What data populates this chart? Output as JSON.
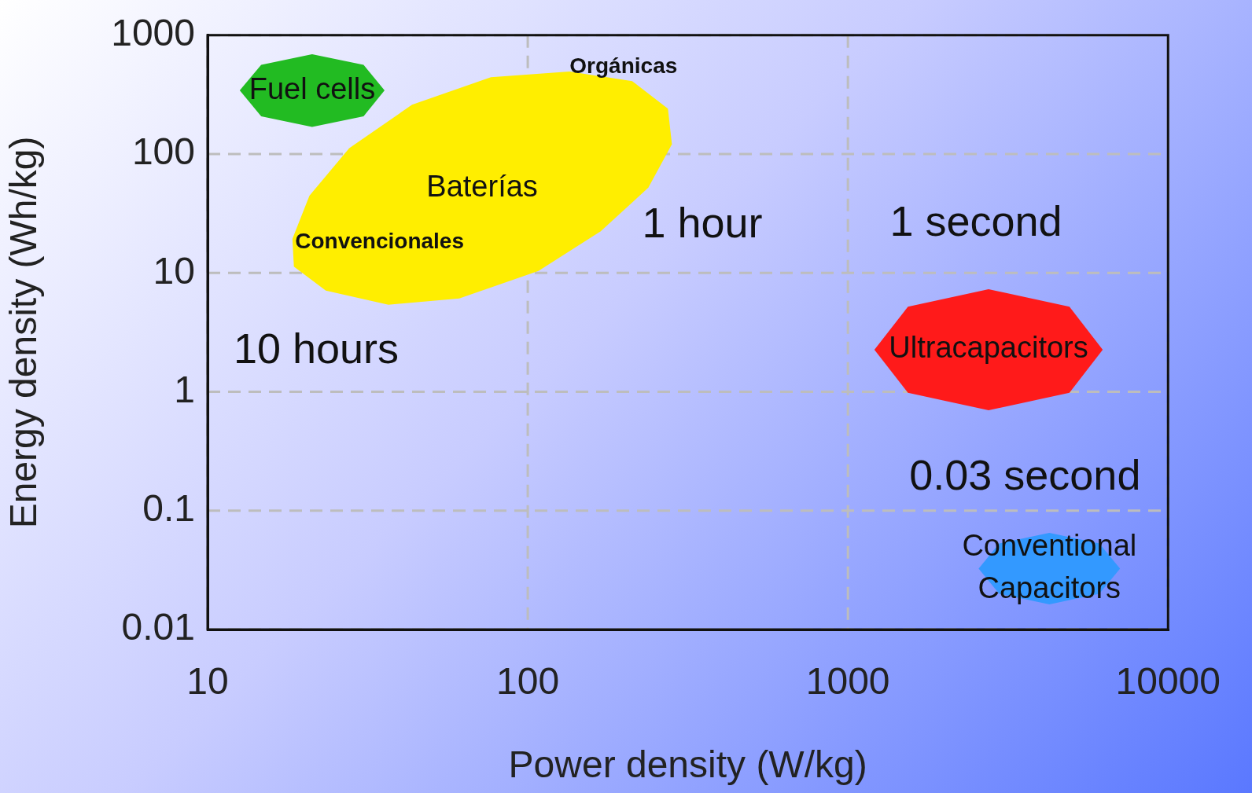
{
  "chart_data": {
    "type": "area",
    "xlabel": "Power density (W/kg)",
    "ylabel": "Energy density (Wh/kg)",
    "log": "xy",
    "xlim": [
      10,
      10000
    ],
    "xticks": [
      10,
      100,
      1000,
      10000
    ],
    "ylim": [
      0.01,
      1000
    ],
    "yticks": [
      0.01,
      0.1,
      1,
      10,
      100,
      1000
    ],
    "grid": true,
    "legend": false,
    "marker": "none",
    "series": [
      {
        "name": "Fuel cells",
        "color": "#22bb22",
        "x": [
          35.7,
          30.7,
          21.2,
          14.7,
          12.6,
          14.7,
          21.2,
          30.7
        ],
        "values": [
          343,
          564,
          693,
          564,
          343,
          208,
          169,
          208
        ]
      },
      {
        "name": "Baterías",
        "color": "#ffee00",
        "x": [
          18.4,
          20.8,
          27.7,
          43.5,
          76.7,
          135,
          212,
          274,
          282,
          238,
          169,
          108,
          61.1,
          36.7,
          23.4,
          18.6
        ],
        "values": [
          19.3,
          44.7,
          112,
          260,
          444,
          494,
          411,
          241,
          121,
          52.1,
          22.4,
          10.4,
          6.1,
          5.4,
          7.1,
          11.3
        ]
      },
      {
        "name": "Ultracapacitors",
        "color": "#ff1a1a",
        "x": [
          6250,
          4920,
          2750,
          1540,
          1210,
          1540,
          2750,
          4920
        ],
        "values": [
          2.26,
          5.2,
          7.3,
          5.2,
          2.26,
          0.98,
          0.7,
          0.98
        ]
      },
      {
        "name": "Conventional Capacitors",
        "color": "#3399ff",
        "x": [
          7080,
          6100,
          4260,
          2970,
          2560,
          2970,
          4260,
          6100
        ],
        "values": [
          0.0325,
          0.053,
          0.065,
          0.053,
          0.0325,
          0.02,
          0.0163,
          0.02
        ]
      }
    ],
    "annotations": [
      "Orgánicas",
      "Convencionales",
      "10 hours",
      "1 hour",
      "1 second",
      "0.03 second"
    ]
  }
}
